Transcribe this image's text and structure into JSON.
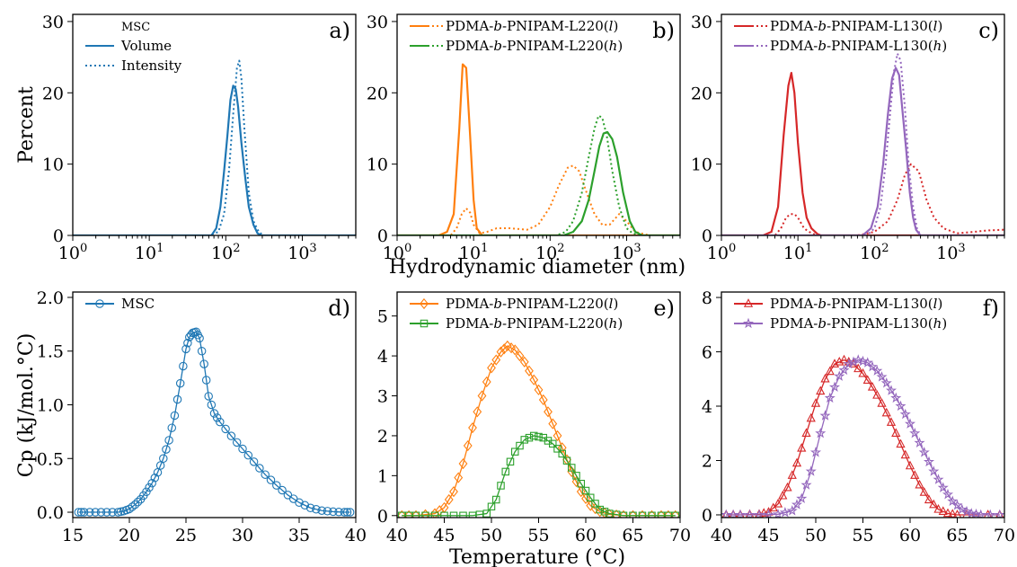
{
  "figure": {
    "shared_xlabel_top": "Hydrodynamic diameter (nm)",
    "shared_xlabel_bottom": "Temperature (°C)",
    "shared_ylabel_top": "Percent",
    "shared_ylabel_bottom": "Cp (kJ/mol.°C)"
  },
  "colors": {
    "blue": "#1f77b4",
    "orange": "#ff7f0e",
    "green": "#2ca02c",
    "red": "#d62728",
    "purple": "#9467bd"
  },
  "chart_data": [
    {
      "panel": "a)",
      "type": "line",
      "xscale": "log",
      "xlim": [
        1,
        5000
      ],
      "ylim": [
        0,
        31
      ],
      "xticks": [
        "10^0",
        "10^1",
        "10^2",
        "10^3"
      ],
      "yticks": [
        0,
        10,
        20,
        30
      ],
      "legend": {
        "title": "MSC",
        "placement": "top-left"
      },
      "series": [
        {
          "name": "Volume",
          "style": "solid",
          "color": "blue",
          "x": [
            1,
            50,
            65,
            75,
            85,
            95,
            105,
            115,
            125,
            135,
            145,
            160,
            180,
            200,
            230,
            260,
            290,
            5000
          ],
          "y": [
            0,
            0,
            0,
            1,
            4,
            9,
            14,
            19,
            21,
            20.5,
            18,
            13,
            8,
            4,
            1.5,
            0.3,
            0,
            0
          ]
        },
        {
          "name": "Intensity",
          "style": "dotted",
          "color": "blue",
          "x": [
            1,
            60,
            80,
            95,
            110,
            125,
            140,
            150,
            160,
            175,
            200,
            230,
            270,
            310,
            5000
          ],
          "y": [
            0,
            0,
            0.5,
            3,
            9,
            17,
            23.5,
            24.5,
            22,
            15,
            6,
            2,
            0.5,
            0,
            0
          ]
        }
      ]
    },
    {
      "panel": "b)",
      "type": "line",
      "xscale": "log",
      "xlim": [
        1,
        5000
      ],
      "ylim": [
        0,
        31
      ],
      "xticks": [
        "10^0",
        "10^1",
        "10^2",
        "10^3"
      ],
      "yticks": [
        0,
        10,
        20,
        30
      ],
      "legend": {
        "placement": "top-left"
      },
      "series": [
        {
          "name": "PDMA-b-PNIPAM-L220(l)",
          "style": "solid",
          "color": "orange",
          "x": [
            1,
            3.5,
            4.5,
            5.5,
            6.5,
            7.2,
            8.0,
            9.0,
            10,
            11,
            13,
            16,
            20,
            5000
          ],
          "y": [
            0,
            0,
            0.5,
            3,
            15,
            24,
            23.5,
            14,
            5,
            1,
            0,
            0,
            0,
            0
          ]
        },
        {
          "name": "PDMA-b-PNIPAM-L220(l)",
          "style": "dotted",
          "color": "orange",
          "x": [
            1,
            5,
            6,
            7,
            8,
            9,
            10,
            12,
            15,
            20,
            30,
            50,
            70,
            100,
            130,
            170,
            200,
            240,
            300,
            380,
            480,
            600,
            800,
            1000,
            1300,
            2000,
            5000
          ],
          "y": [
            0,
            0,
            1,
            3,
            3.8,
            3.2,
            1.5,
            0.3,
            0.5,
            1,
            1,
            0.8,
            1.5,
            4,
            7,
            9.5,
            9.8,
            9,
            6,
            3,
            1.5,
            1.5,
            3,
            2,
            0.5,
            0,
            0
          ]
        },
        {
          "name": "PDMA-b-PNIPAM-L220(h)",
          "style": "solid",
          "color": "green",
          "x": [
            1,
            150,
            200,
            260,
            320,
            380,
            440,
            500,
            560,
            650,
            750,
            900,
            1100,
            1300,
            1600,
            5000
          ],
          "y": [
            0,
            0,
            0.5,
            2,
            5,
            9,
            12.5,
            14.3,
            14.5,
            13.5,
            11,
            6,
            2,
            0.5,
            0,
            0
          ]
        },
        {
          "name": "PDMA-b-PNIPAM-L220(h)",
          "style": "dotted",
          "color": "green",
          "x": [
            1,
            120,
            160,
            200,
            260,
            320,
            380,
            430,
            480,
            550,
            650,
            800,
            1000,
            1200,
            1500,
            5000
          ],
          "y": [
            0,
            0,
            0.5,
            2,
            6,
            11,
            15,
            16.8,
            16.5,
            14,
            9,
            4,
            1,
            0.3,
            0,
            0
          ]
        }
      ]
    },
    {
      "panel": "c)",
      "type": "line",
      "xscale": "log",
      "xlim": [
        1,
        5000
      ],
      "ylim": [
        0,
        31
      ],
      "xticks": [
        "10^0",
        "10^1",
        "10^2",
        "10^3"
      ],
      "yticks": [
        0,
        10,
        20,
        30
      ],
      "legend": {
        "placement": "top-left"
      },
      "series": [
        {
          "name": "PDMA-b-PNIPAM-L130(l)",
          "style": "solid",
          "color": "red",
          "x": [
            1,
            3.5,
            4.5,
            5.5,
            6.5,
            7.5,
            8.2,
            9.0,
            10,
            11.5,
            13,
            15,
            18,
            20,
            5000
          ],
          "y": [
            0,
            0,
            0.5,
            4,
            14,
            21,
            22.8,
            20,
            13,
            6,
            2.5,
            1,
            0.2,
            0,
            0
          ]
        },
        {
          "name": "PDMA-b-PNIPAM-L130(l)",
          "style": "dotted",
          "color": "red",
          "x": [
            1,
            5,
            6,
            7,
            8,
            9,
            10,
            12,
            14,
            16,
            20,
            60,
            100,
            150,
            200,
            250,
            300,
            380,
            480,
            600,
            800,
            1200,
            2000,
            3000,
            5000
          ],
          "y": [
            0,
            0,
            1,
            2.5,
            3,
            3,
            2.5,
            1,
            0.5,
            0.2,
            0,
            0,
            0.5,
            2,
            5,
            8.5,
            10,
            9,
            5,
            2.5,
            1,
            0.3,
            0.5,
            0.7,
            0.8
          ]
        },
        {
          "name": "PDMA-b-PNIPAM-L130(h)",
          "style": "solid",
          "color": "purple",
          "x": [
            1,
            70,
            90,
            110,
            130,
            150,
            170,
            190,
            210,
            230,
            260,
            290,
            320,
            350,
            400,
            5000
          ],
          "y": [
            0,
            0,
            1,
            4,
            10,
            17,
            22,
            23.5,
            22.5,
            18,
            12,
            6,
            2.5,
            0.8,
            0,
            0
          ]
        },
        {
          "name": "PDMA-b-PNIPAM-L130(h)",
          "style": "dotted",
          "color": "purple",
          "x": [
            1,
            80,
            100,
            120,
            140,
            160,
            180,
            200,
            220,
            250,
            280,
            320,
            360,
            400,
            5000
          ],
          "y": [
            0,
            0,
            1,
            4,
            10,
            17,
            23,
            25.5,
            24.5,
            18,
            10,
            4,
            1,
            0,
            0
          ]
        }
      ]
    },
    {
      "panel": "d)",
      "type": "line",
      "xlim": [
        15,
        40
      ],
      "ylim": [
        -0.05,
        2.05
      ],
      "xticks": [
        15,
        20,
        25,
        30,
        35,
        40
      ],
      "yticks": [
        "0.0",
        "0.5",
        "1.0",
        "1.5",
        "2.0"
      ],
      "legend": {
        "placement": "top-left"
      },
      "series": [
        {
          "name": "MSC",
          "style": "solid",
          "color": "blue",
          "marker": "circle",
          "x": [
            15.5,
            16,
            17,
            18,
            19,
            19.5,
            20,
            20.5,
            21,
            21.5,
            22,
            22.5,
            23,
            23.5,
            24,
            24.5,
            25,
            25.3,
            25.6,
            25.9,
            26.2,
            26.6,
            27,
            27.5,
            28,
            29,
            30,
            31,
            32,
            33,
            34,
            35,
            36,
            37,
            38,
            39,
            39.5
          ],
          "y": [
            0,
            0,
            0,
            0,
            0,
            0.01,
            0.03,
            0.07,
            0.12,
            0.19,
            0.27,
            0.37,
            0.5,
            0.67,
            0.9,
            1.2,
            1.52,
            1.63,
            1.67,
            1.68,
            1.62,
            1.38,
            1.08,
            0.92,
            0.84,
            0.71,
            0.59,
            0.47,
            0.35,
            0.25,
            0.16,
            0.09,
            0.04,
            0.015,
            0.005,
            0,
            0
          ]
        }
      ]
    },
    {
      "panel": "e)",
      "type": "line",
      "xlim": [
        40,
        70
      ],
      "ylim": [
        -0.05,
        5.6
      ],
      "xticks": [
        40,
        45,
        50,
        55,
        60,
        65,
        70
      ],
      "yticks": [
        0,
        1,
        2,
        3,
        4,
        5
      ],
      "legend": {
        "placement": "top-left"
      },
      "series": [
        {
          "name": "PDMA-b-PNIPAM-L220(l)",
          "style": "solid",
          "color": "orange",
          "marker": "diamond",
          "x": [
            40.5,
            42,
            44,
            45,
            46,
            47,
            48,
            49,
            50,
            51,
            51.7,
            52.5,
            53.5,
            54.5,
            55.5,
            56.5,
            57.5,
            58.5,
            59.5,
            60.5,
            61.5,
            62.5,
            64,
            66,
            68,
            69.5
          ],
          "y": [
            0,
            0,
            0.05,
            0.2,
            0.6,
            1.3,
            2.2,
            3.0,
            3.7,
            4.1,
            4.25,
            4.15,
            3.85,
            3.4,
            2.9,
            2.3,
            1.7,
            1.1,
            0.6,
            0.25,
            0.1,
            0.03,
            0,
            0,
            0,
            0
          ]
        },
        {
          "name": "PDMA-b-PNIPAM-L220(h)",
          "style": "solid",
          "color": "green",
          "marker": "square",
          "x": [
            40.5,
            42,
            44,
            46,
            48,
            49.5,
            50.5,
            51.5,
            52.5,
            53.5,
            54.5,
            55.5,
            56.5,
            57.5,
            58.5,
            59.5,
            60.5,
            61.5,
            62.5,
            64,
            66,
            68,
            69.5
          ],
          "y": [
            0,
            0,
            0,
            0,
            0,
            0.05,
            0.4,
            1.1,
            1.6,
            1.9,
            2.0,
            1.95,
            1.8,
            1.55,
            1.2,
            0.8,
            0.45,
            0.15,
            0.05,
            0,
            0,
            0,
            0
          ]
        }
      ]
    },
    {
      "panel": "f)",
      "type": "line",
      "xlim": [
        40,
        70
      ],
      "ylim": [
        -0.1,
        8.2
      ],
      "xticks": [
        40,
        45,
        50,
        55,
        60,
        65,
        70
      ],
      "yticks": [
        0,
        2,
        4,
        6,
        8
      ],
      "legend": {
        "placement": "top-left"
      },
      "series": [
        {
          "name": "PDMA-b-PNIPAM-L130(l)",
          "style": "solid",
          "color": "red",
          "marker": "triangle",
          "x": [
            40.5,
            42,
            44,
            45,
            46,
            47,
            48,
            49,
            50,
            51,
            52,
            53,
            54,
            55,
            56,
            57,
            58,
            59,
            60,
            61,
            62,
            63,
            64,
            65,
            67,
            69.5
          ],
          "y": [
            0,
            0,
            0.02,
            0.1,
            0.4,
            1.0,
            1.9,
            3.0,
            4.1,
            5.0,
            5.55,
            5.7,
            5.55,
            5.2,
            4.7,
            4.1,
            3.4,
            2.6,
            1.8,
            1.1,
            0.55,
            0.2,
            0.05,
            0,
            0,
            0
          ]
        },
        {
          "name": "PDMA-b-PNIPAM-L130(h)",
          "style": "solid",
          "color": "purple",
          "marker": "star",
          "x": [
            40.5,
            42,
            44,
            46,
            47.5,
            48.5,
            49.5,
            50.5,
            51.5,
            52.5,
            53.5,
            54.5,
            55.5,
            56.5,
            57.5,
            58.5,
            59.5,
            60.5,
            61.5,
            62.5,
            63.5,
            64.5,
            65.5,
            66.5,
            67.5,
            69.5
          ],
          "y": [
            0,
            0,
            0,
            0.02,
            0.15,
            0.6,
            1.6,
            3.0,
            4.3,
            5.1,
            5.55,
            5.7,
            5.6,
            5.3,
            4.85,
            4.3,
            3.7,
            3.0,
            2.3,
            1.6,
            1.0,
            0.5,
            0.2,
            0.05,
            0,
            0
          ]
        }
      ]
    }
  ]
}
